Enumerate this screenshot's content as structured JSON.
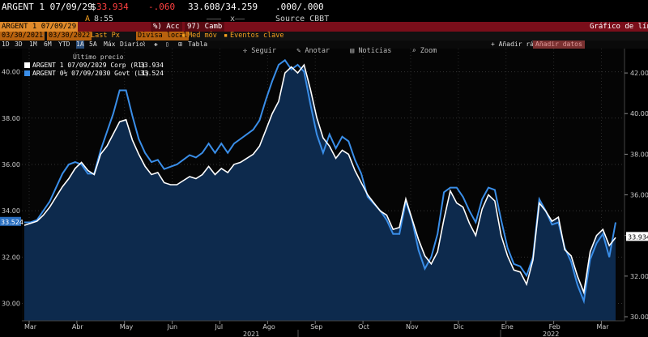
{
  "header": {
    "ticker": "ARGENT 1 07/09/29",
    "price_prefix": "$",
    "price": "33.934",
    "change": "-.060",
    "bid_ask": "33.608/34.259",
    "yields": ".000/.000",
    "time_prefix": "A",
    "time": "8:55",
    "xx": "x",
    "source": "Source CBBT"
  },
  "redbar": {
    "ticker_box": "ARGENT 1 07/09/29",
    "actions_label": "%) Acc",
    "change_label": "97) Camb",
    "chart_type": "Gráfico de líneas"
  },
  "optionsbar": {
    "start_date": "03/30/2021",
    "end_date": "03/30/2022",
    "field": "Last Px",
    "currency": "Divisa local",
    "moving_avg": "Med móv",
    "key_events": "Eventos clave"
  },
  "periodbar": {
    "periods": [
      "1D",
      "3D",
      "1M",
      "6M",
      "YTD",
      "1A",
      "5A",
      "Máx"
    ],
    "selected": "1A",
    "frequency": "Diario",
    "table": "Tabla",
    "quick_add": "+ Añadir rápid",
    "add_data": "Añadir datos"
  },
  "tools": {
    "follow": "Seguir",
    "annotate": "Anotar",
    "news": "Noticias",
    "zoom": "Zoom"
  },
  "legend": {
    "heading": "Último precio",
    "items": [
      {
        "label": "ARGENT 1 07/09/2029 Corp  (R1)",
        "value": "33.934",
        "color": "#ffffff"
      },
      {
        "label": "ARGENT 0½  07/09/2030 Govt  (L1)",
        "value": "33.524",
        "color": "#3a8ee8"
      }
    ]
  },
  "chart_data": {
    "type": "line",
    "xlabel": "",
    "ylabel_left": "",
    "ylabel_right": "",
    "x_tick_labels": [
      "Mar",
      "Abr",
      "May",
      "Jun",
      "Jul",
      "Ago",
      "Sep",
      "Oct",
      "Nov",
      "Dic",
      "Ene",
      "Feb",
      "Mar"
    ],
    "x_year_labels": [
      "2021",
      "2022"
    ],
    "left_axis": {
      "ticks": [
        30.0,
        32.0,
        34.0,
        36.0,
        38.0,
        40.0
      ],
      "range": [
        29.25,
        41.0
      ],
      "tag": "33.524"
    },
    "right_axis": {
      "ticks": [
        30.0,
        32.0,
        34.0,
        36.0,
        38.0,
        40.0,
        42.0
      ],
      "range": [
        29.8,
        43.2
      ],
      "tag": "33.934"
    },
    "colors": {
      "white_series": "#ffffff",
      "blue_series": "#3a8ee8",
      "fill": "#0d2a4d",
      "background": "#000000"
    },
    "series": [
      {
        "name": "ARGENT 1 07/09/2029 Corp (R1)",
        "axis": "right",
        "color": "#ffffff",
        "values": [
          34.5,
          34.6,
          34.7,
          35.0,
          35.4,
          35.9,
          36.4,
          36.8,
          37.3,
          37.6,
          37.2,
          37.0,
          38.0,
          38.4,
          39.0,
          39.6,
          39.7,
          38.7,
          38.0,
          37.4,
          37.0,
          37.1,
          36.6,
          36.5,
          36.5,
          36.7,
          36.9,
          36.8,
          37.0,
          37.4,
          37.0,
          37.3,
          37.1,
          37.5,
          37.6,
          37.8,
          38.0,
          38.4,
          39.2,
          40.0,
          40.6,
          42.0,
          42.3,
          42.0,
          42.4,
          41.2,
          39.8,
          38.8,
          38.4,
          37.8,
          38.2,
          38.0,
          37.2,
          36.6,
          36.0,
          35.6,
          35.2,
          35.0,
          34.3,
          34.4,
          35.8,
          34.8,
          33.8,
          33.0,
          32.6,
          33.2,
          34.8,
          36.2,
          35.6,
          35.4,
          34.6,
          34.0,
          35.3,
          36.0,
          35.7,
          34.0,
          33.0,
          32.3,
          32.2,
          31.6,
          32.8,
          35.6,
          35.2,
          34.7,
          34.9,
          33.3,
          33.0,
          32.0,
          31.2,
          33.2,
          34.0,
          34.3,
          33.5,
          33.9
        ]
      },
      {
        "name": "ARGENT 0½ 07/09/2030 Govt (L1)",
        "axis": "left",
        "color": "#3a8ee8",
        "values": [
          33.5,
          33.5,
          33.6,
          34.0,
          34.4,
          35.0,
          35.6,
          36.0,
          36.1,
          36.0,
          35.6,
          35.6,
          36.6,
          37.4,
          38.2,
          39.2,
          39.2,
          38.1,
          37.1,
          36.5,
          36.1,
          36.2,
          35.8,
          35.9,
          36.0,
          36.2,
          36.4,
          36.3,
          36.5,
          36.9,
          36.5,
          36.9,
          36.5,
          36.9,
          37.1,
          37.3,
          37.5,
          37.9,
          38.8,
          39.6,
          40.3,
          40.5,
          40.1,
          40.3,
          40.0,
          38.6,
          37.3,
          36.5,
          37.3,
          36.7,
          37.2,
          37.0,
          36.2,
          35.6,
          34.6,
          34.3,
          34.0,
          33.6,
          33.0,
          33.0,
          34.4,
          33.6,
          32.3,
          31.5,
          32.0,
          33.0,
          34.8,
          35.0,
          35.0,
          34.6,
          34.0,
          33.5,
          34.5,
          35.0,
          34.9,
          33.6,
          32.4,
          31.7,
          31.6,
          31.2,
          32.0,
          34.5,
          34.0,
          33.4,
          33.5,
          32.4,
          31.8,
          30.8,
          30.1,
          31.9,
          32.6,
          33.0,
          32.0,
          33.5
        ]
      }
    ]
  }
}
